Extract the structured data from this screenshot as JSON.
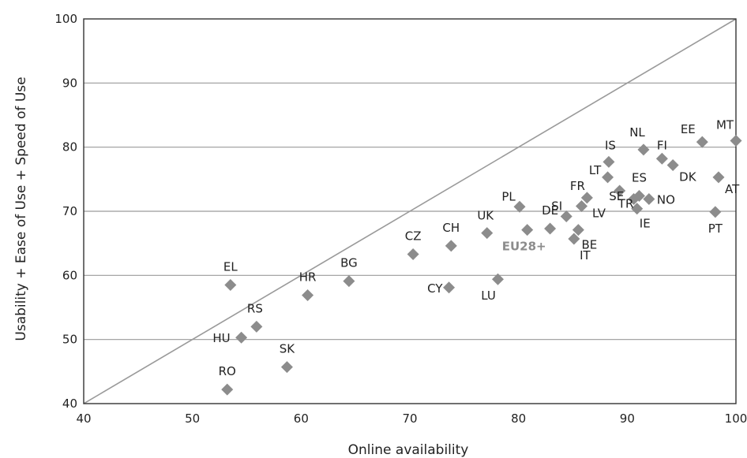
{
  "chart_data": {
    "type": "scatter",
    "title": "",
    "xlabel": "Online availability",
    "ylabel": "Usability + Ease of Use + Speed of Use",
    "xlim": [
      40,
      100
    ],
    "ylim": [
      40,
      100
    ],
    "xticks": [
      40,
      50,
      60,
      70,
      80,
      90,
      100
    ],
    "yticks": [
      40,
      50,
      60,
      70,
      80,
      90,
      100
    ],
    "grid": "horizontal",
    "reference_line": {
      "from": [
        40,
        40
      ],
      "to": [
        100,
        100
      ]
    },
    "colors": {
      "marker": "#8c8c8c",
      "highlight_label": "#8c8c8c",
      "grid": "#9a9a9a",
      "diagonal": "#9a9a9a"
    },
    "points": [
      {
        "label": "EL",
        "x": 53.5,
        "y": 58.5
      },
      {
        "label": "RO",
        "x": 53.2,
        "y": 42.2
      },
      {
        "label": "HU",
        "x": 54.5,
        "y": 50.3
      },
      {
        "label": "RS",
        "x": 55.9,
        "y": 52.0
      },
      {
        "label": "SK",
        "x": 58.7,
        "y": 45.7
      },
      {
        "label": "HR",
        "x": 60.6,
        "y": 56.9
      },
      {
        "label": "BG",
        "x": 64.4,
        "y": 59.1
      },
      {
        "label": "CZ",
        "x": 70.3,
        "y": 63.3
      },
      {
        "label": "CY",
        "x": 73.6,
        "y": 58.1
      },
      {
        "label": "CH",
        "x": 73.8,
        "y": 64.6
      },
      {
        "label": "UK",
        "x": 77.1,
        "y": 66.6
      },
      {
        "label": "LU",
        "x": 78.1,
        "y": 59.4
      },
      {
        "label": "PL",
        "x": 80.1,
        "y": 70.7
      },
      {
        "label": "EU28+",
        "x": 80.8,
        "y": 67.1,
        "highlight": true
      },
      {
        "label": "DE",
        "x": 82.9,
        "y": 67.3
      },
      {
        "label": "SI",
        "x": 84.4,
        "y": 69.2
      },
      {
        "label": "IT",
        "x": 85.1,
        "y": 65.7
      },
      {
        "label": "BE",
        "x": 85.5,
        "y": 67.1
      },
      {
        "label": "LV",
        "x": 85.8,
        "y": 70.8
      },
      {
        "label": "FR",
        "x": 86.3,
        "y": 72.1
      },
      {
        "label": "LT",
        "x": 88.2,
        "y": 75.3
      },
      {
        "label": "IS",
        "x": 88.3,
        "y": 77.7
      },
      {
        "label": "SE",
        "x": 89.3,
        "y": 73.2
      },
      {
        "label": "TR",
        "x": 90.6,
        "y": 71.9
      },
      {
        "label": "IE",
        "x": 90.9,
        "y": 70.4
      },
      {
        "label": "ES",
        "x": 91.1,
        "y": 72.4
      },
      {
        "label": "NL",
        "x": 91.5,
        "y": 79.6
      },
      {
        "label": "NO",
        "x": 92.0,
        "y": 71.9
      },
      {
        "label": "FI",
        "x": 93.2,
        "y": 78.2
      },
      {
        "label": "DK",
        "x": 94.2,
        "y": 77.2
      },
      {
        "label": "EE",
        "x": 96.9,
        "y": 80.8
      },
      {
        "label": "PT",
        "x": 98.1,
        "y": 69.9
      },
      {
        "label": "AT",
        "x": 98.4,
        "y": 75.3
      },
      {
        "label": "MT",
        "x": 100.0,
        "y": 81.0
      }
    ]
  }
}
